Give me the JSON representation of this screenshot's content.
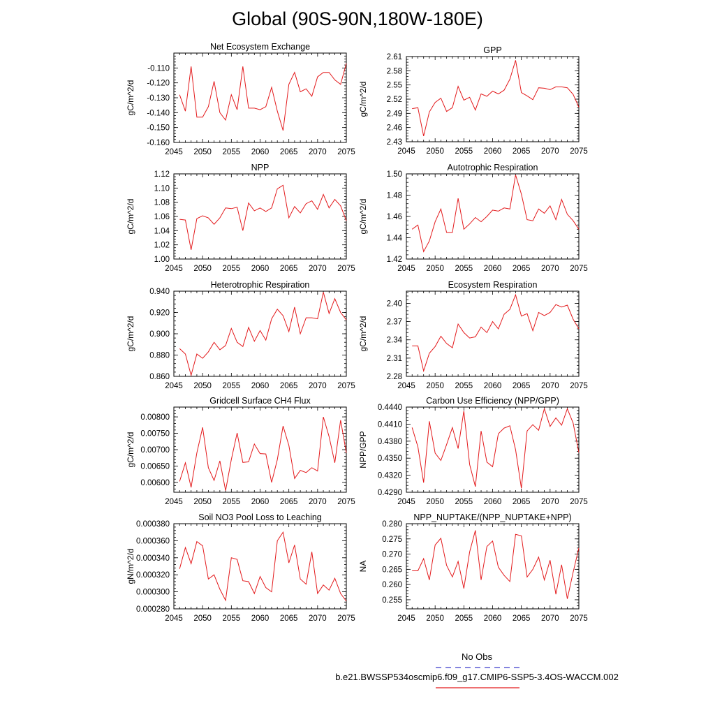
{
  "page_title": "Global (90S-90N,180W-180E)",
  "legend": {
    "obs_label": "No Obs",
    "obs_color": "#3b3bc9",
    "case_label": "b.e21.BWSSP534oscmip6.f09_g17.CMIP6-SSP5-3.4OS-WACCM.002",
    "case_color": "#e31a1c"
  },
  "chart_data": [
    {
      "type": "line",
      "title": "Net Ecosystem Exchange",
      "ylabel": "gC/m^2/d",
      "xlim": [
        2045,
        2075
      ],
      "ylim": [
        -0.16,
        -0.1
      ],
      "xticks": [
        2045,
        2050,
        2055,
        2060,
        2065,
        2070,
        2075
      ],
      "yticks": [
        -0.16,
        -0.15,
        -0.14,
        -0.13,
        -0.12,
        -0.11
      ],
      "ytick_labels": [
        "-0.160",
        "-0.150",
        "-0.140",
        "-0.130",
        "-0.120",
        "-0.110"
      ],
      "x": [
        2046,
        2047,
        2048,
        2049,
        2050,
        2051,
        2052,
        2053,
        2054,
        2055,
        2056,
        2057,
        2058,
        2059,
        2060,
        2061,
        2062,
        2063,
        2064,
        2065,
        2066,
        2067,
        2068,
        2069,
        2070,
        2071,
        2072,
        2073,
        2074,
        2075
      ],
      "y": [
        -0.128,
        -0.139,
        -0.109,
        -0.143,
        -0.143,
        -0.136,
        -0.119,
        -0.14,
        -0.145,
        -0.128,
        -0.138,
        -0.109,
        -0.137,
        -0.137,
        -0.138,
        -0.136,
        -0.123,
        -0.139,
        -0.152,
        -0.121,
        -0.113,
        -0.126,
        -0.124,
        -0.129,
        -0.116,
        -0.113,
        -0.113,
        -0.118,
        -0.121,
        -0.107
      ]
    },
    {
      "type": "line",
      "title": "GPP",
      "ylabel": "gC/m^2/d",
      "xlim": [
        2045,
        2075
      ],
      "ylim": [
        2.43,
        2.61
      ],
      "xticks": [
        2045,
        2050,
        2055,
        2060,
        2065,
        2070,
        2075
      ],
      "yticks": [
        2.43,
        2.46,
        2.49,
        2.52,
        2.55,
        2.58,
        2.61
      ],
      "ytick_labels": [
        "2.43",
        "2.46",
        "2.49",
        "2.52",
        "2.55",
        "2.58",
        "2.61"
      ],
      "x": [
        2046,
        2047,
        2048,
        2049,
        2050,
        2051,
        2052,
        2053,
        2054,
        2055,
        2056,
        2057,
        2058,
        2059,
        2060,
        2061,
        2062,
        2063,
        2064,
        2065,
        2066,
        2067,
        2068,
        2069,
        2070,
        2071,
        2072,
        2073,
        2074,
        2075
      ],
      "y": [
        2.5,
        2.502,
        2.442,
        2.493,
        2.513,
        2.522,
        2.494,
        2.502,
        2.547,
        2.518,
        2.524,
        2.497,
        2.531,
        2.526,
        2.537,
        2.531,
        2.539,
        2.562,
        2.602,
        2.534,
        2.527,
        2.519,
        2.544,
        2.543,
        2.54,
        2.546,
        2.546,
        2.544,
        2.53,
        2.503
      ]
    },
    {
      "type": "line",
      "title": "NPP",
      "ylabel": "gC/m^2/d",
      "xlim": [
        2045,
        2075
      ],
      "ylim": [
        1.0,
        1.12
      ],
      "xticks": [
        2045,
        2050,
        2055,
        2060,
        2065,
        2070,
        2075
      ],
      "yticks": [
        1.0,
        1.02,
        1.04,
        1.06,
        1.08,
        1.1,
        1.12
      ],
      "ytick_labels": [
        "1.00",
        "1.02",
        "1.04",
        "1.06",
        "1.08",
        "1.10",
        "1.12"
      ],
      "x": [
        2046,
        2047,
        2048,
        2049,
        2050,
        2051,
        2052,
        2053,
        2054,
        2055,
        2056,
        2057,
        2058,
        2059,
        2060,
        2061,
        2062,
        2063,
        2064,
        2065,
        2066,
        2067,
        2068,
        2069,
        2070,
        2071,
        2072,
        2073,
        2074,
        2075
      ],
      "y": [
        1.056,
        1.055,
        1.013,
        1.057,
        1.061,
        1.058,
        1.049,
        1.058,
        1.072,
        1.071,
        1.073,
        1.04,
        1.079,
        1.068,
        1.072,
        1.067,
        1.072,
        1.099,
        1.104,
        1.058,
        1.074,
        1.065,
        1.078,
        1.082,
        1.07,
        1.091,
        1.072,
        1.084,
        1.075,
        1.054
      ]
    },
    {
      "type": "line",
      "title": "Autotrophic Respiration",
      "ylabel": "gC/m^2/d",
      "xlim": [
        2045,
        2075
      ],
      "ylim": [
        1.42,
        1.5
      ],
      "xticks": [
        2045,
        2050,
        2055,
        2060,
        2065,
        2070,
        2075
      ],
      "yticks": [
        1.42,
        1.44,
        1.46,
        1.48,
        1.5
      ],
      "ytick_labels": [
        "1.42",
        "1.44",
        "1.46",
        "1.48",
        "1.50"
      ],
      "x": [
        2046,
        2047,
        2048,
        2049,
        2050,
        2051,
        2052,
        2053,
        2054,
        2055,
        2056,
        2057,
        2058,
        2059,
        2060,
        2061,
        2062,
        2063,
        2064,
        2065,
        2066,
        2067,
        2068,
        2069,
        2070,
        2071,
        2072,
        2073,
        2074,
        2075
      ],
      "y": [
        1.448,
        1.452,
        1.427,
        1.437,
        1.455,
        1.467,
        1.445,
        1.445,
        1.477,
        1.448,
        1.453,
        1.459,
        1.455,
        1.46,
        1.466,
        1.465,
        1.468,
        1.467,
        1.499,
        1.481,
        1.457,
        1.456,
        1.467,
        1.463,
        1.47,
        1.457,
        1.476,
        1.462,
        1.456,
        1.448
      ]
    },
    {
      "type": "line",
      "title": "Heterotrophic Respiration",
      "ylabel": "gC/m^2/d",
      "xlim": [
        2045,
        2075
      ],
      "ylim": [
        0.86,
        0.94
      ],
      "xticks": [
        2045,
        2050,
        2055,
        2060,
        2065,
        2070,
        2075
      ],
      "yticks": [
        0.86,
        0.88,
        0.9,
        0.92,
        0.94
      ],
      "ytick_labels": [
        "0.860",
        "0.880",
        "0.900",
        "0.920",
        "0.940"
      ],
      "x": [
        2046,
        2047,
        2048,
        2049,
        2050,
        2051,
        2052,
        2053,
        2054,
        2055,
        2056,
        2057,
        2058,
        2059,
        2060,
        2061,
        2062,
        2063,
        2064,
        2065,
        2066,
        2067,
        2068,
        2069,
        2070,
        2071,
        2072,
        2073,
        2074,
        2075
      ],
      "y": [
        0.886,
        0.881,
        0.861,
        0.881,
        0.877,
        0.883,
        0.892,
        0.885,
        0.889,
        0.905,
        0.892,
        0.888,
        0.906,
        0.893,
        0.903,
        0.894,
        0.914,
        0.923,
        0.917,
        0.902,
        0.925,
        0.9,
        0.915,
        0.915,
        0.914,
        0.939,
        0.919,
        0.933,
        0.92,
        0.913
      ]
    },
    {
      "type": "line",
      "title": "Ecosystem Respiration",
      "ylabel": "gC/m^2/d",
      "xlim": [
        2045,
        2075
      ],
      "ylim": [
        2.28,
        2.42
      ],
      "xticks": [
        2045,
        2050,
        2055,
        2060,
        2065,
        2070,
        2075
      ],
      "yticks": [
        2.28,
        2.31,
        2.34,
        2.37,
        2.4
      ],
      "ytick_labels": [
        "2.28",
        "2.31",
        "2.34",
        "2.37",
        "2.40"
      ],
      "x": [
        2046,
        2047,
        2048,
        2049,
        2050,
        2051,
        2052,
        2053,
        2054,
        2055,
        2056,
        2057,
        2058,
        2059,
        2060,
        2061,
        2062,
        2063,
        2064,
        2065,
        2066,
        2067,
        2068,
        2069,
        2070,
        2071,
        2072,
        2073,
        2074,
        2075
      ],
      "y": [
        2.33,
        2.33,
        2.289,
        2.318,
        2.329,
        2.346,
        2.334,
        2.327,
        2.366,
        2.352,
        2.343,
        2.345,
        2.361,
        2.352,
        2.37,
        2.358,
        2.382,
        2.39,
        2.414,
        2.379,
        2.383,
        2.355,
        2.385,
        2.38,
        2.385,
        2.398,
        2.394,
        2.397,
        2.374,
        2.358
      ]
    },
    {
      "type": "line",
      "title": "Gridcell Surface CH4 Flux",
      "ylabel": "gC/m^2/d",
      "xlim": [
        2045,
        2075
      ],
      "ylim": [
        0.0057,
        0.0083
      ],
      "xticks": [
        2045,
        2050,
        2055,
        2060,
        2065,
        2070,
        2075
      ],
      "yticks": [
        0.006,
        0.0065,
        0.007,
        0.0075,
        0.008
      ],
      "ytick_labels": [
        "0.00600",
        "0.00650",
        "0.00700",
        "0.00750",
        "0.00800"
      ],
      "x": [
        2046,
        2047,
        2048,
        2049,
        2050,
        2051,
        2052,
        2053,
        2054,
        2055,
        2056,
        2057,
        2058,
        2059,
        2060,
        2061,
        2062,
        2063,
        2064,
        2065,
        2066,
        2067,
        2068,
        2069,
        2070,
        2071,
        2072,
        2073,
        2074,
        2075
      ],
      "y": [
        0.00603,
        0.0066,
        0.00585,
        0.0069,
        0.00768,
        0.00645,
        0.00606,
        0.00666,
        0.00575,
        0.0067,
        0.00751,
        0.00661,
        0.00663,
        0.00717,
        0.00688,
        0.00687,
        0.006,
        0.0067,
        0.00772,
        0.00713,
        0.00612,
        0.00637,
        0.0063,
        0.00645,
        0.00635,
        0.008,
        0.0074,
        0.0066,
        0.0079,
        0.0069
      ]
    },
    {
      "type": "line",
      "title": "Carbon Use Efficiency (NPP/GPP)",
      "ylabel": "NPP/GPP",
      "xlim": [
        2045,
        2075
      ],
      "ylim": [
        0.429,
        0.444
      ],
      "xticks": [
        2045,
        2050,
        2055,
        2060,
        2065,
        2070,
        2075
      ],
      "yticks": [
        0.429,
        0.432,
        0.435,
        0.438,
        0.441,
        0.444
      ],
      "ytick_labels": [
        "0.4290",
        "0.4320",
        "0.4350",
        "0.4380",
        "0.4410",
        "0.4440"
      ],
      "x": [
        2046,
        2047,
        2048,
        2049,
        2050,
        2051,
        2052,
        2053,
        2054,
        2055,
        2056,
        2057,
        2058,
        2059,
        2060,
        2061,
        2062,
        2063,
        2064,
        2065,
        2066,
        2067,
        2068,
        2069,
        2070,
        2071,
        2072,
        2073,
        2074,
        2075
      ],
      "y": [
        0.4404,
        0.437,
        0.4307,
        0.4415,
        0.4359,
        0.4346,
        0.4374,
        0.4404,
        0.4367,
        0.4433,
        0.4339,
        0.43,
        0.4398,
        0.4343,
        0.4335,
        0.4393,
        0.4403,
        0.4407,
        0.4365,
        0.4297,
        0.4398,
        0.4409,
        0.4399,
        0.4437,
        0.4406,
        0.4421,
        0.4408,
        0.4437,
        0.4412,
        0.436
      ]
    },
    {
      "type": "line",
      "title": "Soil NO3 Pool Loss to Leaching",
      "ylabel": "gN/m^2/d",
      "xlim": [
        2045,
        2075
      ],
      "ylim": [
        0.00028,
        0.00038
      ],
      "xticks": [
        2045,
        2050,
        2055,
        2060,
        2065,
        2070,
        2075
      ],
      "yticks": [
        0.00028,
        0.0003,
        0.00032,
        0.00034,
        0.00036,
        0.00038
      ],
      "ytick_labels": [
        "0.000280",
        "0.000300",
        "0.000320",
        "0.000340",
        "0.000360",
        "0.000380"
      ],
      "x": [
        2046,
        2047,
        2048,
        2049,
        2050,
        2051,
        2052,
        2053,
        2054,
        2055,
        2056,
        2057,
        2058,
        2059,
        2060,
        2061,
        2062,
        2063,
        2064,
        2065,
        2066,
        2067,
        2068,
        2069,
        2070,
        2071,
        2072,
        2073,
        2074,
        2075
      ],
      "y": [
        0.000327,
        0.000352,
        0.000333,
        0.000359,
        0.000354,
        0.000315,
        0.00032,
        0.000303,
        0.00029,
        0.00034,
        0.000338,
        0.000313,
        0.000312,
        0.000298,
        0.000318,
        0.000305,
        0.0003,
        0.00036,
        0.00037,
        0.000334,
        0.000355,
        0.000315,
        0.000309,
        0.000347,
        0.000298,
        0.000308,
        0.000302,
        0.000316,
        0.000298,
        0.000289
      ]
    },
    {
      "type": "line",
      "title": "NPP_NUPTAKE/(NPP_NUPTAKE+NPP)",
      "ylabel": "NA",
      "xlim": [
        2045,
        2075
      ],
      "ylim": [
        0.252,
        0.28
      ],
      "xticks": [
        2045,
        2050,
        2055,
        2060,
        2065,
        2070,
        2075
      ],
      "yticks": [
        0.255,
        0.26,
        0.265,
        0.27,
        0.275,
        0.28
      ],
      "ytick_labels": [
        "0.255",
        "0.260",
        "0.265",
        "0.270",
        "0.275",
        "0.280"
      ],
      "x": [
        2046,
        2047,
        2048,
        2049,
        2050,
        2051,
        2052,
        2053,
        2054,
        2055,
        2056,
        2057,
        2058,
        2059,
        2060,
        2061,
        2062,
        2063,
        2064,
        2065,
        2066,
        2067,
        2068,
        2069,
        2070,
        2071,
        2072,
        2073,
        2074,
        2075
      ],
      "y": [
        0.2645,
        0.2645,
        0.2685,
        0.2615,
        0.273,
        0.2752,
        0.2663,
        0.2625,
        0.2676,
        0.2587,
        0.2707,
        0.2778,
        0.2615,
        0.2725,
        0.2743,
        0.2657,
        0.263,
        0.261,
        0.2765,
        0.276,
        0.2625,
        0.265,
        0.269,
        0.2615,
        0.268,
        0.2568,
        0.2665,
        0.2553,
        0.264,
        0.272
      ]
    }
  ]
}
